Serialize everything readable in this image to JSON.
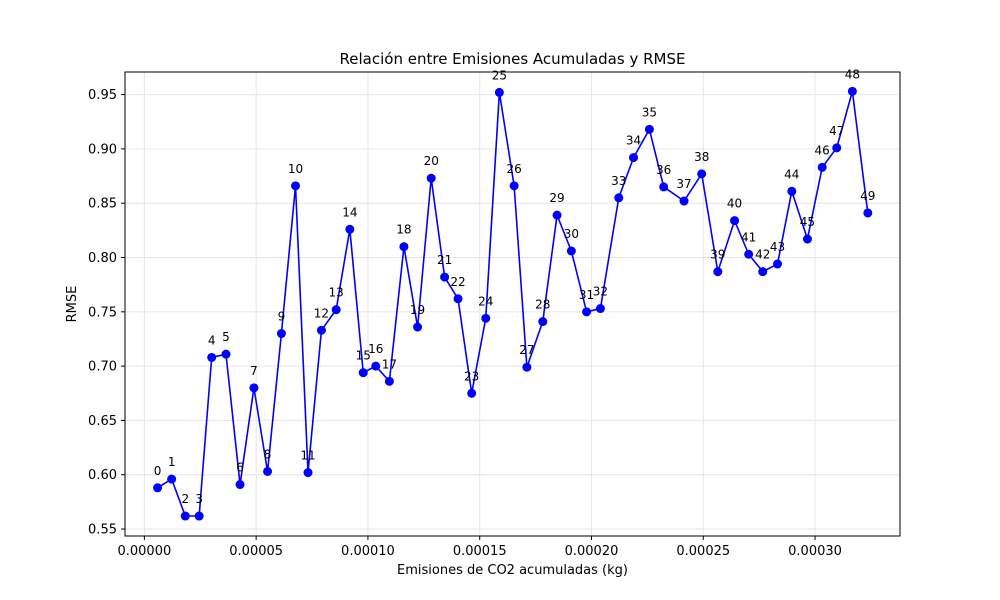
{
  "chart_data": {
    "type": "line",
    "title": "Relación entre Emisiones Acumuladas y RMSE",
    "xlabel": "Emisiones de CO2 acumuladas (kg)",
    "ylabel": "RMSE",
    "xlim": [
      -8.67e-06,
      0.000338
    ],
    "ylim": [
      0.5436,
      0.9708
    ],
    "xticks": [
      "0.00000",
      "0.00005",
      "0.00010",
      "0.00015",
      "0.00020",
      "0.00025",
      "0.00030"
    ],
    "xtick_values": [
      0,
      5e-05,
      0.0001,
      0.00015,
      0.0002,
      0.00025,
      0.0003
    ],
    "yticks": [
      "0.55",
      "0.60",
      "0.65",
      "0.70",
      "0.75",
      "0.80",
      "0.85",
      "0.90",
      "0.95"
    ],
    "ytick_values": [
      0.55,
      0.6,
      0.65,
      0.7,
      0.75,
      0.8,
      0.85,
      0.9,
      0.95
    ],
    "grid": true,
    "colors": {
      "series": "#0000ff",
      "grid": "#e6e6e6",
      "axis": "#000000"
    },
    "series": [
      {
        "x": [
          5.9e-06,
          1.22e-05,
          1.83e-05,
          2.45e-05,
          3.01e-05,
          3.65e-05,
          4.28e-05,
          4.9e-05,
          5.51e-05,
          6.13e-05,
          6.76e-05,
          7.32e-05,
          7.92e-05,
          8.58e-05,
          9.19e-05,
          9.79e-05,
          0.0001035,
          0.0001096,
          0.0001161,
          0.0001222,
          0.0001283,
          0.0001343,
          0.0001403,
          0.0001464,
          0.0001527,
          0.0001588,
          0.0001654,
          0.0001711,
          0.0001782,
          0.0001846,
          0.000191,
          0.0001978,
          0.000204,
          0.0002122,
          0.0002188,
          0.0002259,
          0.0002323,
          0.0002414,
          0.0002493,
          0.0002565,
          0.000264,
          0.0002703,
          0.0002766,
          0.0002832,
          0.0002896,
          0.0002966,
          0.0003032,
          0.0003097,
          0.0003167,
          0.0003236
        ],
        "y": [
          0.588,
          0.596,
          0.562,
          0.562,
          0.708,
          0.711,
          0.591,
          0.68,
          0.603,
          0.73,
          0.866,
          0.602,
          0.733,
          0.752,
          0.826,
          0.694,
          0.7,
          0.686,
          0.81,
          0.736,
          0.873,
          0.782,
          0.762,
          0.675,
          0.744,
          0.952,
          0.866,
          0.699,
          0.741,
          0.839,
          0.806,
          0.75,
          0.753,
          0.855,
          0.892,
          0.918,
          0.865,
          0.852,
          0.877,
          0.787,
          0.834,
          0.803,
          0.787,
          0.794,
          0.861,
          0.817,
          0.883,
          0.901,
          0.953,
          0.841
        ],
        "labels": [
          "0",
          "1",
          "2",
          "3",
          "4",
          "5",
          "6",
          "7",
          "8",
          "9",
          "10",
          "11",
          "12",
          "13",
          "14",
          "15",
          "16",
          "17",
          "18",
          "19",
          "20",
          "21",
          "22",
          "23",
          "24",
          "25",
          "26",
          "27",
          "28",
          "29",
          "30",
          "31",
          "32",
          "33",
          "34",
          "35",
          "36",
          "37",
          "38",
          "39",
          "40",
          "41",
          "42",
          "43",
          "44",
          "45",
          "46",
          "47",
          "48",
          "49"
        ]
      }
    ]
  }
}
